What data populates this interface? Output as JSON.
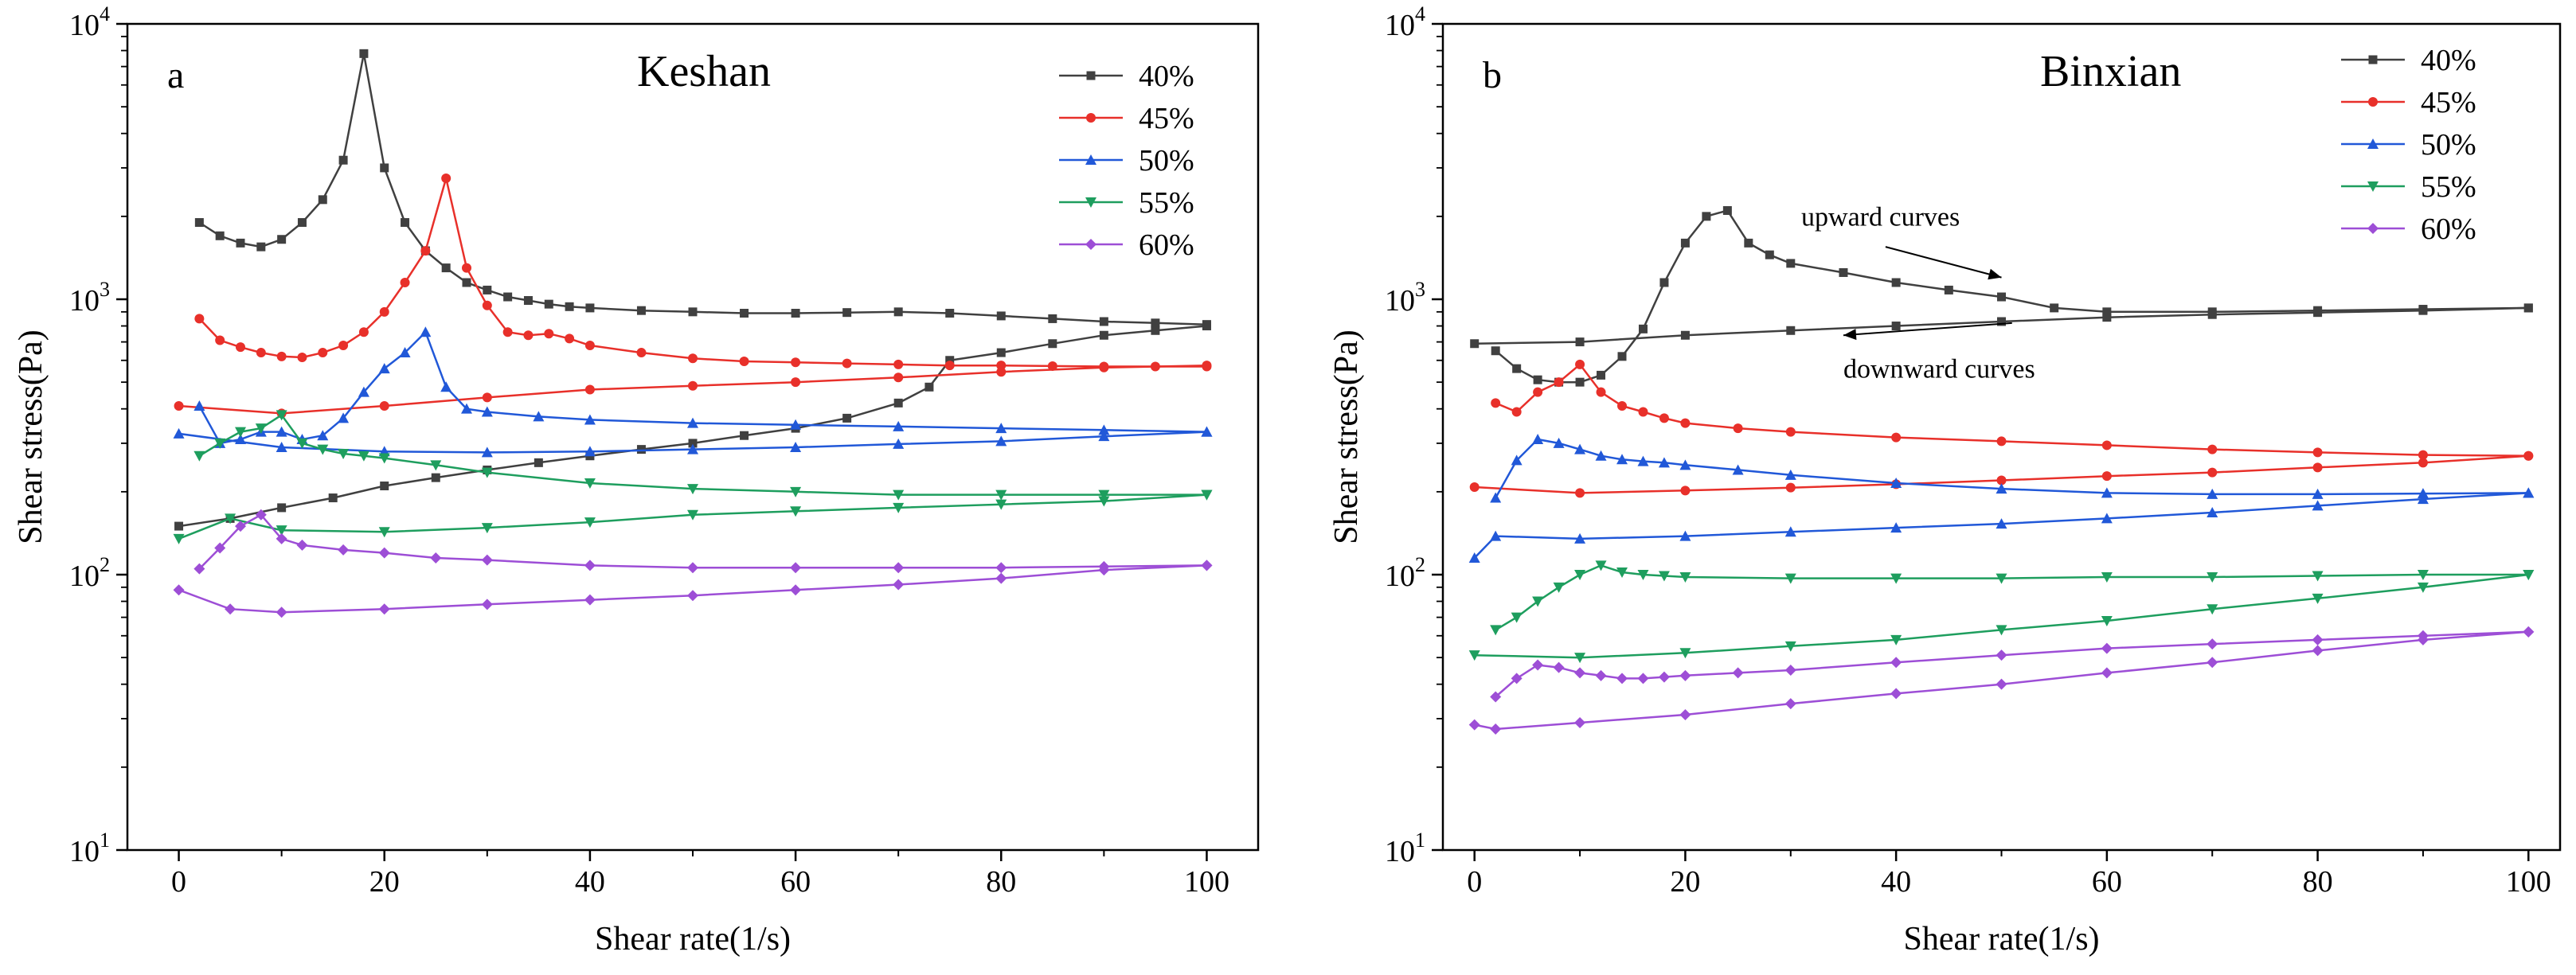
{
  "chart_data": [
    {
      "type": "line",
      "panel_label": "a",
      "title": "Keshan",
      "xlabel": "Shear rate(1/s)",
      "ylabel": "Shear stress(Pa)",
      "yscale": "log",
      "xlim": [
        -5,
        105
      ],
      "ylim": [
        10,
        10000
      ],
      "xticks": [
        0,
        20,
        40,
        60,
        80,
        100
      ],
      "ytick_labels": [
        {
          "base": "10",
          "exp": "1"
        },
        {
          "base": "10",
          "exp": "2"
        },
        {
          "base": "10",
          "exp": "3"
        },
        {
          "base": "10",
          "exp": "4"
        }
      ],
      "legend_position": "top-right",
      "series": [
        {
          "name": "40%",
          "color": "#404040",
          "marker": "square",
          "up": {
            "x": [
              2,
              4,
              6,
              8,
              10,
              12,
              14,
              16,
              18,
              20,
              22,
              24,
              26,
              28,
              30,
              32,
              34,
              36,
              38,
              40,
              45,
              50,
              55,
              60,
              65,
              70,
              75,
              80,
              85,
              90,
              95,
              100
            ],
            "y": [
              1900,
              1700,
              1600,
              1550,
              1650,
              1900,
              2300,
              3200,
              7800,
              3000,
              1900,
              1500,
              1300,
              1150,
              1080,
              1020,
              990,
              960,
              940,
              930,
              910,
              900,
              890,
              890,
              895,
              900,
              890,
              870,
              850,
              830,
              820,
              810
            ]
          },
          "down": {
            "x": [
              100,
              95,
              90,
              85,
              80,
              75,
              73,
              70,
              65,
              60,
              55,
              50,
              45,
              40,
              35,
              30,
              25,
              20,
              15,
              10,
              5,
              0
            ],
            "y": [
              800,
              770,
              740,
              690,
              640,
              600,
              480,
              420,
              370,
              340,
              320,
              300,
              285,
              270,
              255,
              240,
              225,
              210,
              190,
              175,
              160,
              150
            ]
          }
        },
        {
          "name": "45%",
          "color": "#e8302a",
          "marker": "circle",
          "up": {
            "x": [
              2,
              4,
              6,
              8,
              10,
              12,
              14,
              16,
              18,
              20,
              22,
              24,
              26,
              28,
              30,
              32,
              34,
              36,
              38,
              40,
              45,
              50,
              55,
              60,
              65,
              70,
              75,
              80,
              85,
              90,
              95,
              100
            ],
            "y": [
              850,
              710,
              670,
              640,
              620,
              615,
              640,
              680,
              760,
              900,
              1150,
              1500,
              2750,
              1300,
              950,
              760,
              740,
              750,
              720,
              680,
              640,
              610,
              595,
              590,
              585,
              580,
              575,
              575,
              572,
              570,
              570,
              570
            ]
          },
          "down": {
            "x": [
              100,
              90,
              80,
              70,
              60,
              50,
              40,
              30,
              20,
              10,
              0
            ],
            "y": [
              575,
              565,
              545,
              520,
              500,
              485,
              470,
              440,
              410,
              385,
              410
            ]
          }
        },
        {
          "name": "50%",
          "color": "#2158d8",
          "marker": "triangle-up",
          "up": {
            "x": [
              2,
              4,
              6,
              8,
              10,
              12,
              14,
              16,
              18,
              20,
              22,
              24,
              26,
              28,
              30,
              35,
              40,
              50,
              60,
              70,
              80,
              90,
              100
            ],
            "y": [
              410,
              300,
              310,
              330,
              330,
              310,
              320,
              370,
              460,
              560,
              640,
              760,
              480,
              400,
              390,
              375,
              365,
              355,
              350,
              345,
              340,
              335,
              330
            ]
          },
          "down": {
            "x": [
              100,
              90,
              80,
              70,
              60,
              50,
              40,
              30,
              20,
              10,
              0
            ],
            "y": [
              330,
              318,
              305,
              298,
              290,
              285,
              280,
              278,
              280,
              290,
              325
            ]
          }
        },
        {
          "name": "55%",
          "color": "#1e9e5e",
          "marker": "triangle-down",
          "up": {
            "x": [
              2,
              4,
              6,
              8,
              10,
              12,
              14,
              16,
              18,
              20,
              25,
              30,
              40,
              50,
              60,
              70,
              80,
              90,
              100
            ],
            "y": [
              270,
              300,
              330,
              340,
              380,
              300,
              285,
              275,
              270,
              265,
              250,
              235,
              215,
              205,
              200,
              195,
              195,
              195,
              195
            ]
          },
          "down": {
            "x": [
              100,
              90,
              80,
              70,
              60,
              50,
              40,
              30,
              20,
              10,
              5,
              0
            ],
            "y": [
              195,
              185,
              180,
              175,
              170,
              165,
              155,
              148,
              143,
              145,
              160,
              135
            ]
          }
        },
        {
          "name": "60%",
          "color": "#9d4ed6",
          "marker": "diamond",
          "up": {
            "x": [
              2,
              4,
              6,
              8,
              10,
              12,
              16,
              20,
              25,
              30,
              40,
              50,
              60,
              70,
              80,
              90,
              100
            ],
            "y": [
              105,
              125,
              150,
              165,
              135,
              128,
              123,
              120,
              115,
              113,
              108,
              106,
              106,
              106,
              106,
              107,
              108
            ]
          },
          "down": {
            "x": [
              100,
              90,
              80,
              70,
              60,
              50,
              40,
              30,
              20,
              10,
              5,
              0
            ],
            "y": [
              108,
              104,
              97,
              92,
              88,
              84,
              81,
              78,
              75,
              73,
              75,
              88
            ]
          }
        }
      ]
    },
    {
      "type": "line",
      "panel_label": "b",
      "title": "Binxian",
      "xlabel": "Shear rate(1/s)",
      "ylabel": "Shear stress(Pa)",
      "yscale": "log",
      "xlim": [
        -3,
        103
      ],
      "ylim": [
        10,
        10000
      ],
      "xticks": [
        0,
        20,
        40,
        60,
        80,
        100
      ],
      "ytick_labels": [
        {
          "base": "10",
          "exp": "1"
        },
        {
          "base": "10",
          "exp": "2"
        },
        {
          "base": "10",
          "exp": "3"
        },
        {
          "base": "10",
          "exp": "4"
        }
      ],
      "legend_position": "top-right",
      "annotations": [
        {
          "text": "upward curves",
          "anchor": [
            31,
            1850
          ],
          "arrow_from": [
            39,
            1550
          ],
          "arrow_to": [
            50,
            1200
          ]
        },
        {
          "text": "downward curves",
          "anchor": [
            35,
            520
          ],
          "arrow_from": [
            51,
            820
          ],
          "arrow_to": [
            35,
            740
          ]
        }
      ],
      "series": [
        {
          "name": "40%",
          "color": "#404040",
          "marker": "square",
          "up": {
            "x": [
              2,
              4,
              6,
              8,
              10,
              12,
              14,
              16,
              18,
              20,
              22,
              24,
              26,
              28,
              30,
              35,
              40,
              45,
              50,
              55,
              60,
              70,
              80,
              90,
              100
            ],
            "y": [
              650,
              560,
              510,
              500,
              500,
              530,
              620,
              780,
              1150,
              1600,
              2000,
              2100,
              1600,
              1450,
              1350,
              1250,
              1150,
              1080,
              1020,
              930,
              900,
              900,
              910,
              920,
              930
            ]
          },
          "down": {
            "x": [
              100,
              90,
              80,
              70,
              60,
              50,
              40,
              30,
              20,
              10,
              0
            ],
            "y": [
              930,
              910,
              895,
              880,
              860,
              830,
              800,
              770,
              740,
              700,
              690
            ]
          }
        },
        {
          "name": "45%",
          "color": "#e8302a",
          "marker": "circle",
          "up": {
            "x": [
              2,
              4,
              6,
              8,
              10,
              12,
              14,
              16,
              18,
              20,
              25,
              30,
              40,
              50,
              60,
              70,
              80,
              90,
              100
            ],
            "y": [
              420,
              390,
              460,
              500,
              580,
              460,
              410,
              390,
              370,
              355,
              340,
              330,
              315,
              305,
              295,
              285,
              278,
              272,
              270
            ]
          },
          "down": {
            "x": [
              100,
              90,
              80,
              70,
              60,
              50,
              40,
              30,
              20,
              10,
              0
            ],
            "y": [
              270,
              255,
              245,
              235,
              228,
              220,
              213,
              207,
              202,
              198,
              208
            ]
          }
        },
        {
          "name": "50%",
          "color": "#2158d8",
          "marker": "triangle-up",
          "up": {
            "x": [
              2,
              4,
              6,
              8,
              10,
              12,
              14,
              16,
              18,
              20,
              25,
              30,
              40,
              50,
              60,
              70,
              80,
              90,
              100
            ],
            "y": [
              190,
              260,
              310,
              300,
              285,
              270,
              262,
              258,
              255,
              250,
              240,
              230,
              215,
              205,
              198,
              196,
              196,
              197,
              198
            ]
          },
          "down": {
            "x": [
              100,
              90,
              80,
              70,
              60,
              50,
              40,
              30,
              20,
              10,
              2,
              0
            ],
            "y": [
              198,
              188,
              178,
              168,
              160,
              153,
              148,
              143,
              138,
              135,
              138,
              115
            ]
          }
        },
        {
          "name": "55%",
          "color": "#1e9e5e",
          "marker": "triangle-down",
          "up": {
            "x": [
              2,
              4,
              6,
              8,
              10,
              12,
              14,
              16,
              18,
              20,
              30,
              40,
              50,
              60,
              70,
              80,
              90,
              100
            ],
            "y": [
              63,
              70,
              80,
              90,
              100,
              108,
              102,
              100,
              99,
              98,
              97,
              97,
              97,
              98,
              98,
              99,
              100,
              100
            ]
          },
          "down": {
            "x": [
              100,
              90,
              80,
              70,
              60,
              50,
              40,
              30,
              20,
              10,
              0
            ],
            "y": [
              100,
              90,
              82,
              75,
              68,
              63,
              58,
              55,
              52,
              50,
              51
            ]
          }
        },
        {
          "name": "60%",
          "color": "#9d4ed6",
          "marker": "diamond",
          "up": {
            "x": [
              2,
              4,
              6,
              8,
              10,
              12,
              14,
              16,
              18,
              20,
              25,
              30,
              40,
              50,
              60,
              70,
              80,
              90,
              100
            ],
            "y": [
              36,
              42,
              47,
              46,
              44,
              43,
              42,
              42,
              42.5,
              43,
              44,
              45,
              48,
              51,
              54,
              56,
              58,
              60,
              62
            ]
          },
          "down": {
            "x": [
              100,
              90,
              80,
              70,
              60,
              50,
              40,
              30,
              20,
              10,
              2,
              0
            ],
            "y": [
              62,
              58,
              53,
              48,
              44,
              40,
              37,
              34,
              31,
              29,
              27.5,
              28.5
            ]
          }
        }
      ]
    }
  ]
}
